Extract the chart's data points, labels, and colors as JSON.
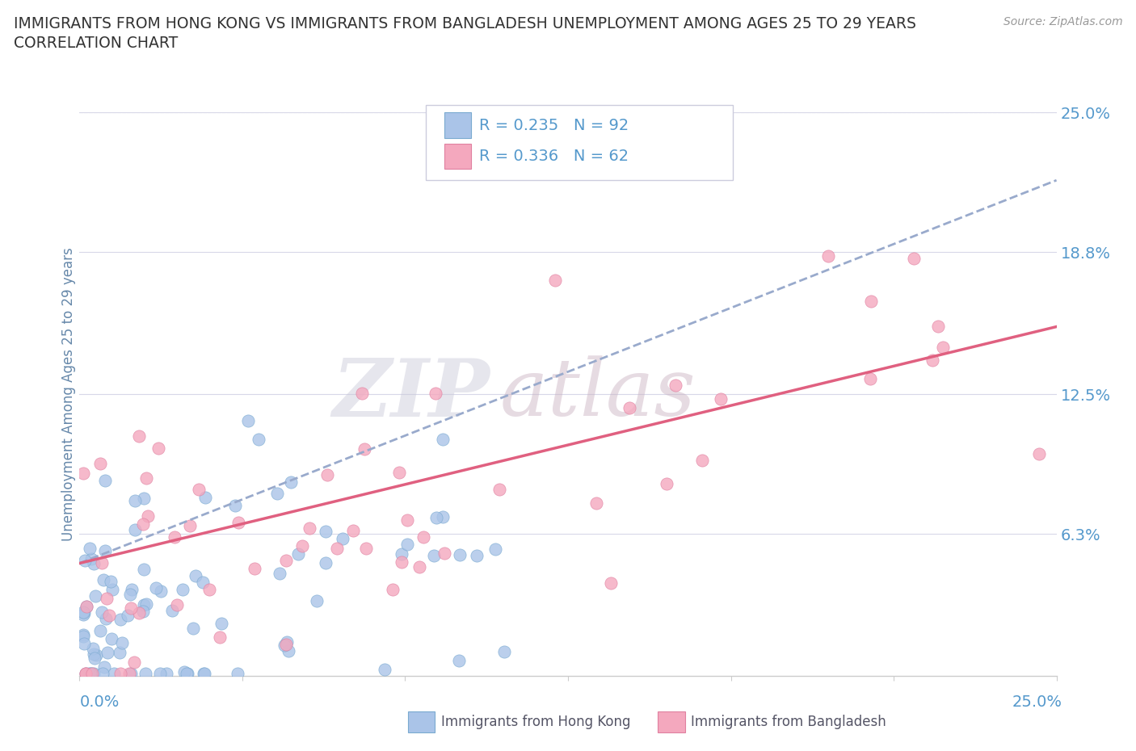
{
  "title_line1": "IMMIGRANTS FROM HONG KONG VS IMMIGRANTS FROM BANGLADESH UNEMPLOYMENT AMONG AGES 25 TO 29 YEARS",
  "title_line2": "CORRELATION CHART",
  "source_text": "Source: ZipAtlas.com",
  "ylabel": "Unemployment Among Ages 25 to 29 years",
  "xlim": [
    0.0,
    0.25
  ],
  "ylim": [
    0.0,
    0.25
  ],
  "ytick_values": [
    0.063,
    0.125,
    0.188,
    0.25
  ],
  "hk_R": 0.235,
  "hk_N": 92,
  "bd_R": 0.336,
  "bd_N": 62,
  "hk_color": "#aac4e8",
  "bd_color": "#f4a8be",
  "hk_edge_color": "#7aaad0",
  "bd_edge_color": "#e080a0",
  "hk_line_color": "#99aacc",
  "bd_line_color": "#e06080",
  "watermark_zip": "ZIP",
  "watermark_atlas": "atlas",
  "watermark_color_zip": "#c8c8d8",
  "watermark_color_atlas": "#c8b0c0",
  "background_color": "#ffffff",
  "grid_color": "#d8d8e8",
  "title_color": "#333333",
  "axis_label_color": "#6688aa",
  "tick_label_color": "#5599cc",
  "seed_hk": 42,
  "seed_bd": 7
}
